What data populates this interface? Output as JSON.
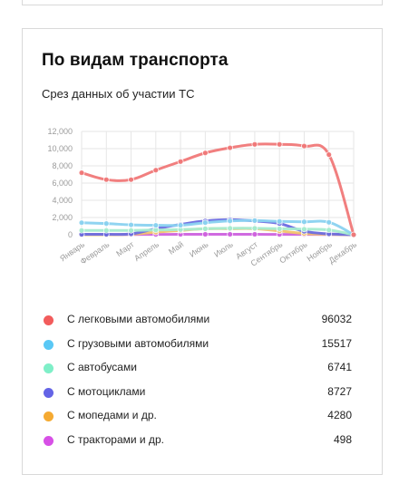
{
  "card": {
    "title": "По видам транспорта",
    "subtitle": "Срез данных об участии ТС"
  },
  "legend": [
    {
      "label": "С легковыми автомобилями",
      "value": "96032",
      "color": "#f25c5c"
    },
    {
      "label": "С грузовыми автомобилями",
      "value": "15517",
      "color": "#5ac8f5"
    },
    {
      "label": "С автобусами",
      "value": "6741",
      "color": "#7fefc8"
    },
    {
      "label": "С мотоциклами",
      "value": "8727",
      "color": "#6464e6"
    },
    {
      "label": "С мопедами и др.",
      "value": "4280",
      "color": "#f5aa32"
    },
    {
      "label": "С тракторами и др.",
      "value": "498",
      "color": "#d750e6"
    }
  ],
  "chart_data": {
    "type": "line",
    "ylim": [
      0,
      12000
    ],
    "y_ticks": [
      "0",
      "2,000",
      "4,000",
      "6,000",
      "8,000",
      "10,000",
      "12,000"
    ],
    "categories": [
      "Январь",
      "Февраль",
      "Март",
      "Апрель",
      "Май",
      "Июнь",
      "Июль",
      "Август",
      "Сентябрь",
      "Октябрь",
      "Ноябрь",
      "Декабрь"
    ],
    "grid": true,
    "series": [
      {
        "name": "С легковыми автомобилями",
        "color": "#f07878",
        "values": [
          7200,
          6400,
          6400,
          7500,
          8500,
          9500,
          10100,
          10500,
          10500,
          10300,
          9300,
          0
        ]
      },
      {
        "name": "С грузовыми автомобилями",
        "color": "#8ad2f0",
        "values": [
          1400,
          1300,
          1150,
          1100,
          1100,
          1400,
          1600,
          1650,
          1550,
          1500,
          1450,
          0
        ]
      },
      {
        "name": "С автобусами",
        "color": "#a6eccf",
        "values": [
          500,
          500,
          500,
          550,
          600,
          700,
          750,
          750,
          700,
          650,
          550,
          0
        ]
      },
      {
        "name": "С мотоциклами",
        "color": "#6b6be0",
        "values": [
          50,
          50,
          100,
          700,
          1200,
          1600,
          1750,
          1600,
          1300,
          400,
          100,
          0
        ]
      },
      {
        "name": "С мопедами и др.",
        "color": "#f2c36b",
        "values": [
          0,
          0,
          50,
          300,
          500,
          700,
          700,
          700,
          450,
          150,
          50,
          0
        ]
      },
      {
        "name": "С тракторами и др.",
        "color": "#cf63de",
        "values": [
          20,
          20,
          30,
          40,
          50,
          50,
          50,
          50,
          40,
          40,
          30,
          0
        ]
      }
    ]
  }
}
